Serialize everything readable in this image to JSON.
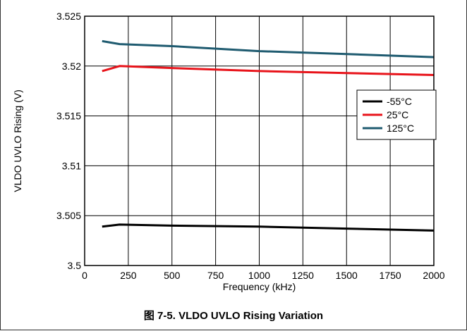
{
  "caption": "图 7-5. VLDO UVLO Rising Variation",
  "chart_data": {
    "type": "line",
    "title": "",
    "xlabel": "Frequency (kHz)",
    "ylabel": "VLDO UVLO Rising (V)",
    "xlim": [
      0,
      2000
    ],
    "ylim": [
      3.5,
      3.525
    ],
    "xticks": [
      0,
      250,
      500,
      750,
      1000,
      1250,
      1500,
      1750,
      2000
    ],
    "yticks": [
      3.5,
      3.505,
      3.51,
      3.515,
      3.52,
      3.525
    ],
    "xtick_labels": [
      "0",
      "250",
      "500",
      "750",
      "1000",
      "1250",
      "1500",
      "1750",
      "2000"
    ],
    "ytick_labels": [
      "3.5",
      "3.505",
      "3.51",
      "3.515",
      "3.52",
      "3.525"
    ],
    "grid": true,
    "legend_position": "right",
    "series": [
      {
        "name": "-55°C",
        "color": "#000000",
        "x": [
          100,
          200,
          500,
          1000,
          1500,
          2000
        ],
        "y": [
          3.5039,
          3.5041,
          3.504,
          3.5039,
          3.5037,
          3.5035
        ]
      },
      {
        "name": "25°C",
        "color": "#e8141b",
        "x": [
          100,
          200,
          500,
          1000,
          1500,
          2000
        ],
        "y": [
          3.5195,
          3.52,
          3.5198,
          3.5195,
          3.5193,
          3.5191
        ]
      },
      {
        "name": "125°C",
        "color": "#1f5b70",
        "x": [
          100,
          200,
          500,
          1000,
          1500,
          2000
        ],
        "y": [
          3.5225,
          3.5222,
          3.522,
          3.5215,
          3.5212,
          3.5209
        ]
      }
    ]
  }
}
